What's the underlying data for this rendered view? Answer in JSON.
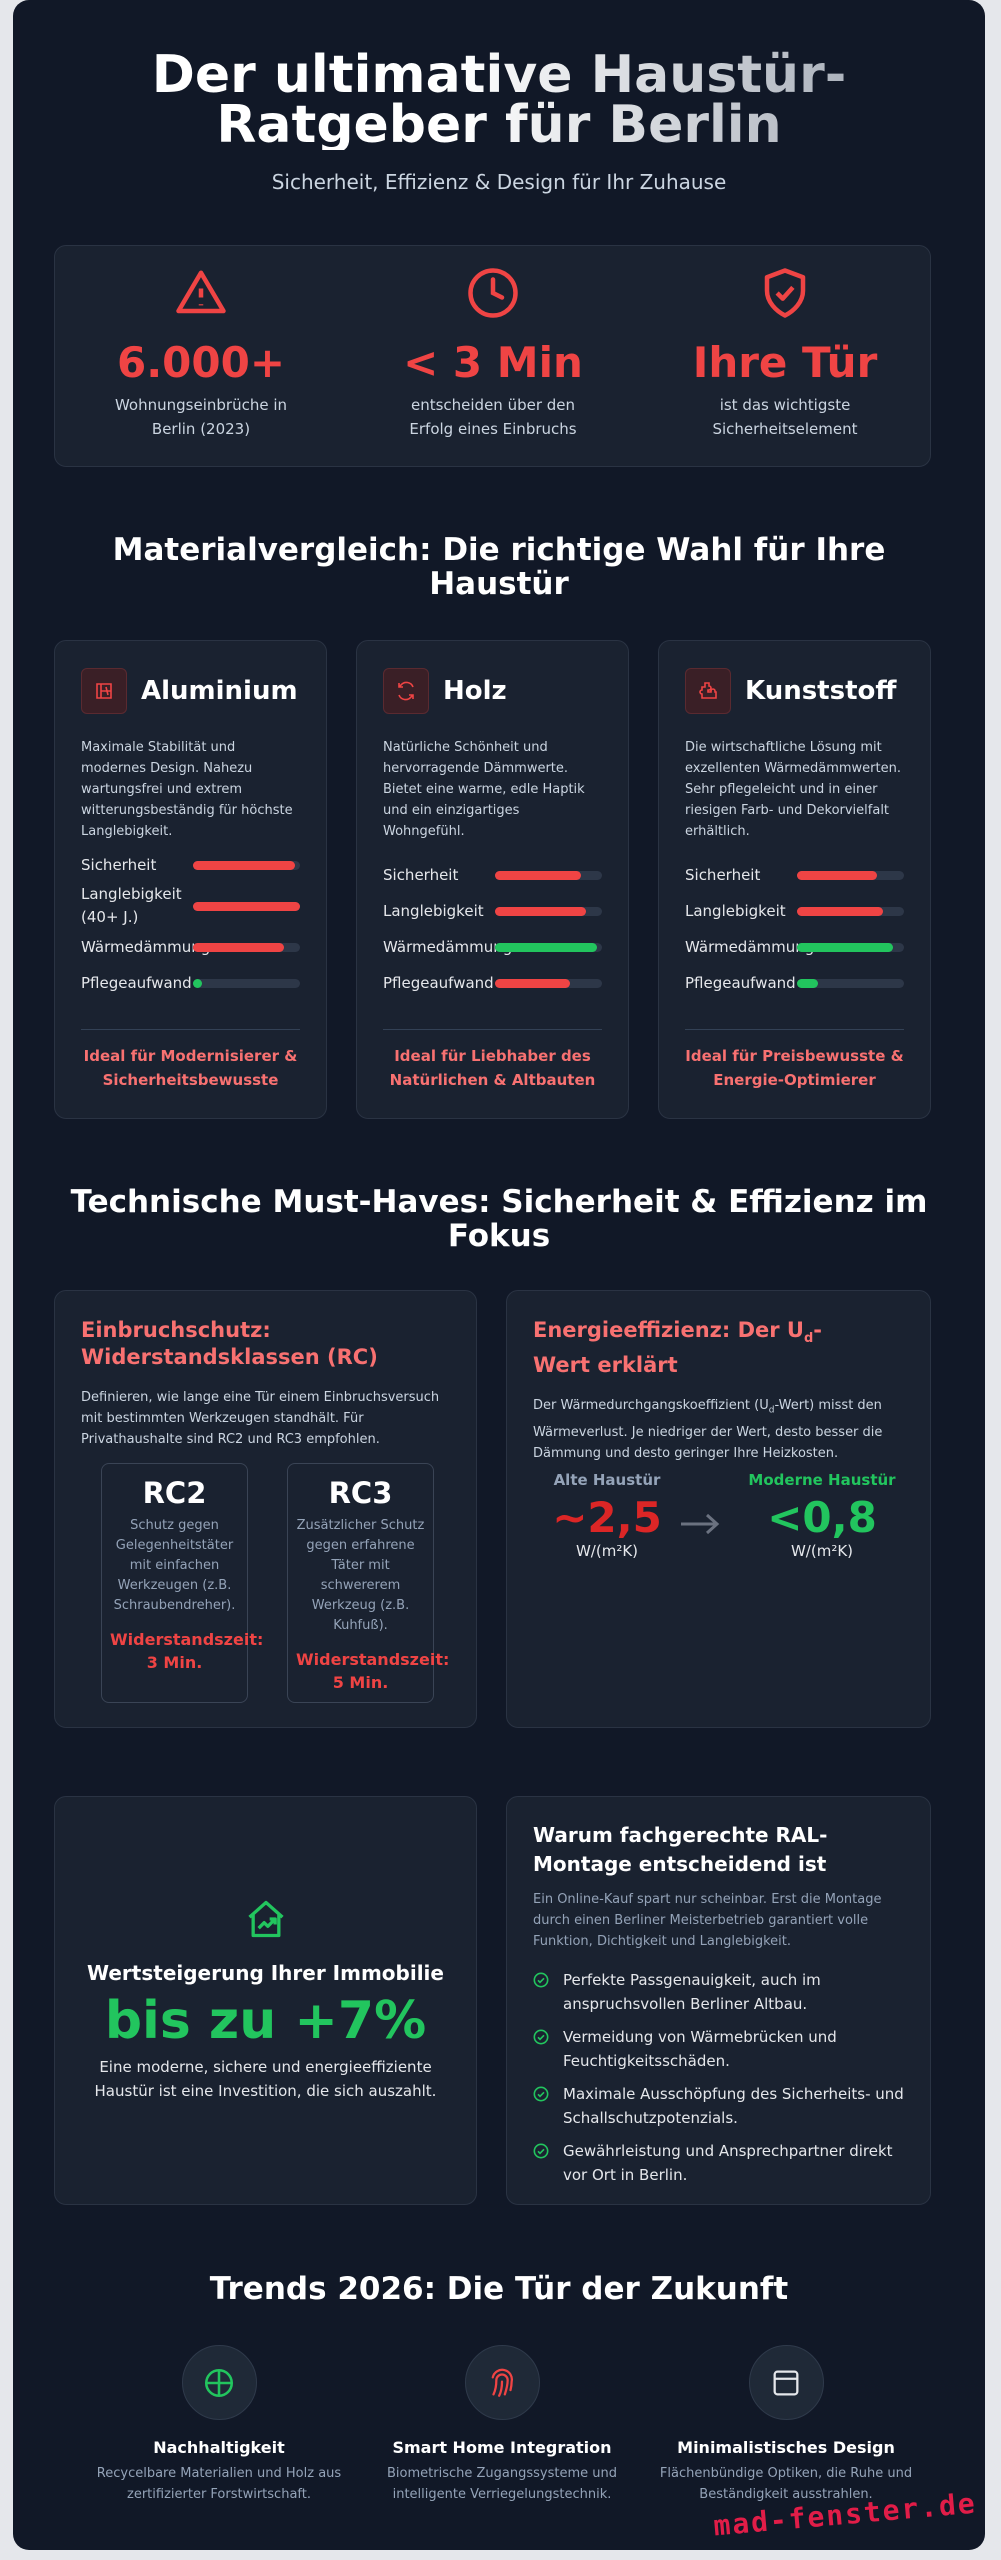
{
  "header": {
    "title": "Der ultimative Haustür-Ratgeber für Berlin",
    "subtitle": "Sicherheit, Effizienz & Design für Ihr Zuhause"
  },
  "stats": [
    {
      "value": "6.000+",
      "label": "Wohnungseinbrüche in Berlin (2023)"
    },
    {
      "value": "< 3 Min",
      "label": "entscheiden über den Erfolg eines Einbruchs"
    },
    {
      "value": "Ihre Tür",
      "label": "ist das wichtigste Sicherheitselement"
    }
  ],
  "materials": {
    "title": "Materialvergleich: Die richtige Wahl für Ihre Haustür",
    "cards": [
      {
        "name": "Aluminium",
        "description": "Maximale Stabilität und modernes Design. Nahezu wartungsfrei und extrem witterungsbeständig für höchste Langlebigkeit.",
        "ratings": [
          {
            "label": "Sicherheit",
            "value": 95,
            "color": "#ef4444"
          },
          {
            "label": "Langlebigkeit (40+ J.)",
            "value": 100,
            "color": "#ef4444"
          },
          {
            "label": "Wärmedämmung",
            "value": 85,
            "color": "#ef4444"
          },
          {
            "label": "Pflegeaufwand",
            "value": 8,
            "color": "#22c55e"
          }
        ],
        "recommendation": "Ideal für Modernisierer & Sicherheitsbewusste"
      },
      {
        "name": "Holz",
        "description": "Natürliche Schönheit und hervorragende Dämmwerte. Bietet eine warme, edle Haptik und ein einzigartiges Wohngefühl.",
        "ratings": [
          {
            "label": "Sicherheit",
            "value": 80,
            "color": "#ef4444"
          },
          {
            "label": "Langlebigkeit",
            "value": 85,
            "color": "#ef4444"
          },
          {
            "label": "Wärmedämmung",
            "value": 95,
            "color": "#22c55e"
          },
          {
            "label": "Pflegeaufwand",
            "value": 70,
            "color": "#ef4444"
          }
        ],
        "recommendation": "Ideal für Liebhaber des Natürlichen & Altbauten"
      },
      {
        "name": "Kunststoff",
        "description": "Die wirtschaftliche Lösung mit exzellenten Wärmedämmwerten. Sehr pflegeleicht und in einer riesigen Farb- und Dekorvielfalt erhältlich.",
        "ratings": [
          {
            "label": "Sicherheit",
            "value": 75,
            "color": "#ef4444"
          },
          {
            "label": "Langlebigkeit",
            "value": 80,
            "color": "#ef4444"
          },
          {
            "label": "Wärmedämmung",
            "value": 90,
            "color": "#22c55e"
          },
          {
            "label": "Pflegeaufwand",
            "value": 20,
            "color": "#22c55e"
          }
        ],
        "recommendation": "Ideal für Preisbewusste & Energie-Optimierer"
      }
    ]
  },
  "technical": {
    "title": "Technische Must-Haves: Sicherheit & Effizienz im Fokus",
    "burglary": {
      "title": "Einbruchschutz: Widerstandsklassen (RC)",
      "text": "Definieren, wie lange eine Tür einem Einbruchsversuch mit bestimmten Werkzeugen standhält. Für Privathaushalte sind RC2 und RC3 empfohlen.",
      "classes": [
        {
          "name": "RC2",
          "text": "Schutz gegen Gelegenheitstäter mit einfachen Werkzeugen (z.B. Schraubendreher).",
          "time": "Widerstandszeit: 3 Min."
        },
        {
          "name": "RC3",
          "text": "Zusätzlicher Schutz gegen erfahrene Täter mit schwererem Werkzeug (z.B. Kuhfuß).",
          "time": "Widerstandszeit: 5 Min."
        }
      ]
    },
    "energy": {
      "title_start": "Energieeffizienz: Der U",
      "title_sub": "d",
      "title_end": "-Wert erklärt",
      "text_start": "Der Wärmedurchgangskoeffizient (U",
      "text_sub": "d",
      "text_end": "-Wert) misst den Wärmeverlust. Je niedriger der Wert, desto besser die Dämmung und desto geringer Ihre Heizkosten.",
      "old": {
        "label": "Alte Haustür",
        "value": "~2,5",
        "unit": "W/(m²K)"
      },
      "new": {
        "label": "Moderne Haustür",
        "value": "<0,8",
        "unit": "W/(m²K)"
      }
    }
  },
  "value": {
    "title": "Wertsteigerung Ihrer Immobilie",
    "amount": "bis zu +7%",
    "text": "Eine moderne, sichere und energieeffiziente Haustür ist eine Investition, die sich auszahlt."
  },
  "montage": {
    "title": "Warum fachgerechte RAL-Montage entscheidend ist",
    "text": "Ein Online-Kauf spart nur scheinbar. Erst die Montage durch einen Berliner Meisterbetrieb garantiert volle Funktion, Dichtigkeit und Langlebigkeit.",
    "items": [
      "Perfekte Passgenauigkeit, auch im anspruchsvollen Berliner Altbau.",
      "Vermeidung von Wärmebrücken und Feuchtigkeitsschäden.",
      "Maximale Ausschöpfung des Sicherheits- und Schallschutzpotenzials.",
      "Gewährleistung und Ansprechpartner direkt vor Ort in Berlin."
    ]
  },
  "trends": {
    "title": "Trends 2026: Die Tür der Zukunft",
    "items": [
      {
        "name": "Nachhaltigkeit",
        "text": "Recycelbare Materialien und Holz aus zertifizierter Forstwirtschaft."
      },
      {
        "name": "Smart Home Integration",
        "text": "Biometrische Zugangssysteme und intelligente Verriegelungstechnik."
      },
      {
        "name": "Minimalistisches Design",
        "text": "Flächenbündige Optiken, die Ruhe und Beständigkeit ausstrahlen."
      }
    ]
  },
  "brand": "mad-fenster.de"
}
